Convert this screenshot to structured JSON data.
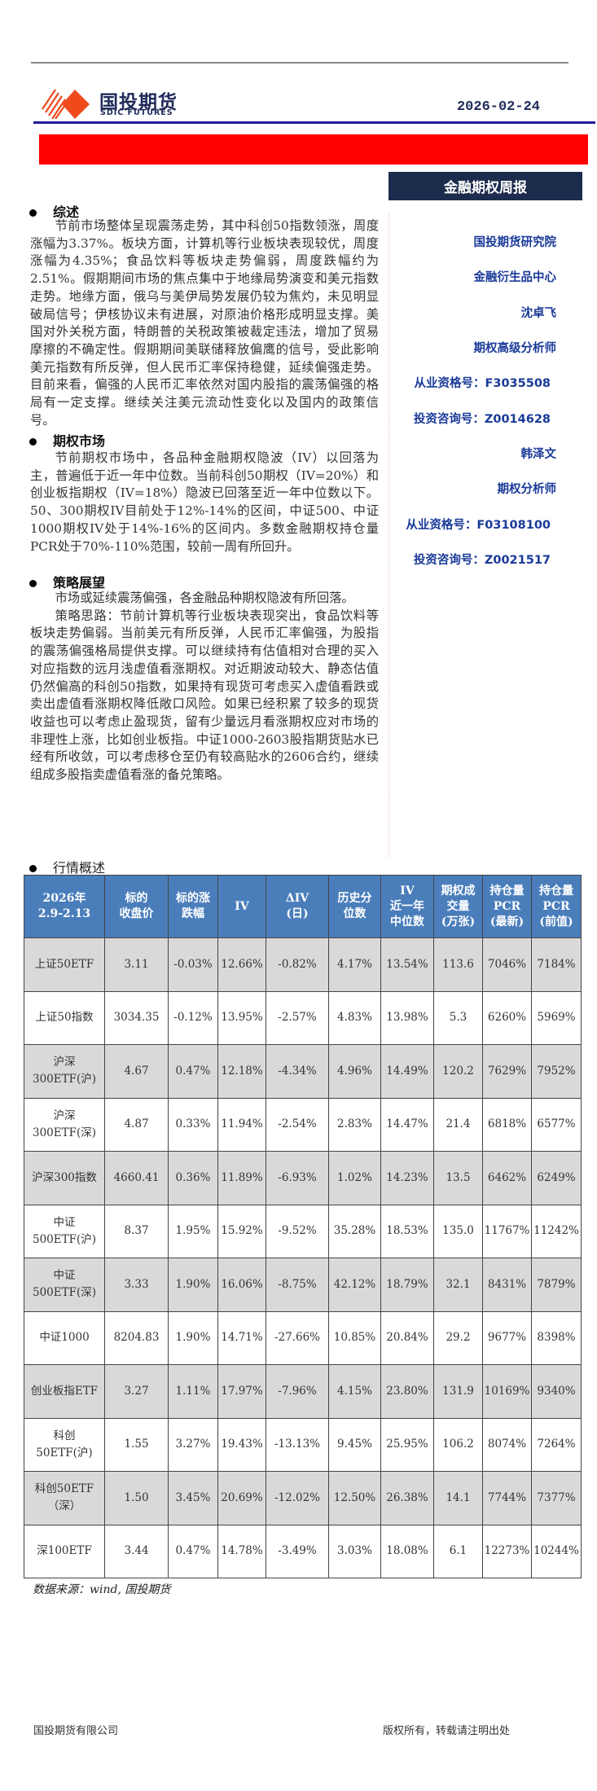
{
  "header": {
    "logo_cn": "国投期货",
    "logo_en": "SDIC FUTURES",
    "date": "2026-02-24",
    "report_type": "金融期权周报",
    "brand_red": "#ff0000",
    "brand_navy": "#1c2c4c"
  },
  "sections": [
    {
      "title": "综述",
      "paragraphs": [
        "节前市场整体呈现震荡走势，其中科创50指数领涨，周度涨幅为3.37%。板块方面，计算机等行业板块表现较优，周度涨幅为4.35%；食品饮料等板块走势偏弱，周度跌幅约为2.51%。假期期间市场的焦点集中于地缘局势演变和美元指数走势。地缘方面，俄乌与美伊局势发展仍较为焦灼，未见明显破局信号；伊核协议未有进展，对原油价格形成明显支撑。美国对外关税方面，特朗普的关税政策被裁定违法，增加了贸易摩擦的不确定性。假期期间美联储释放偏鹰的信号，受此影响美元指数有所反弹，但人民币汇率保持稳健，延续偏强走势。目前来看，偏强的人民币汇率依然对国内股指的震荡偏强的格局有一定支撑。继续关注美元流动性变化以及国内的政策信号。"
      ]
    },
    {
      "title": "期权市场",
      "paragraphs": [
        "节前期权市场中，各品种金融期权隐波（IV）以回落为主，普遍低于近一年中位数。当前科创50期权（IV=20%）和创业板指期权（IV=18%）隐波已回落至近一年中位数以下。 50、300期权IV目前处于12%-14%的区间，中证500、中证1000期权IV处于14%-16%的区间内。多数金融期权持仓量PCR处于70%-110%范围，较前一周有所回升。"
      ]
    },
    {
      "title": "策略展望",
      "paragraphs": [
        "市场或延续震荡偏强，各金融品种期权隐波有所回落。",
        "策略思路：节前计算机等行业板块表现突出，食品饮料等板块走势偏弱。当前美元有所反弹，人民币汇率偏强，为股指的震荡偏强格局提供支撑。可以继续持有估值相对合理的买入对应指数的远月浅虚值看涨期权。对近期波动较大、静态估值仍然偏高的科创50指数，如果持有现货可考虑买入虚值看跌或卖出虚值看涨期权降低敞口风险。如果已经积累了较多的现货收益也可以考虑止盈现货，留有少量远月看涨期权应对市场的非理性上涨，比如创业板指。中证1000-2603股指期货贴水已经有所收敛，可以考虑移仓至仍有较高贴水的2606合约，继续组成多股指卖虚值看涨的备兑策略。"
      ]
    }
  ],
  "sidebar": {
    "items": [
      {
        "text": "国投期货研究院"
      },
      {
        "text": "金融衍生品中心"
      },
      {
        "text": "沈卓飞"
      },
      {
        "text": "期权高级分析师"
      },
      {
        "text": "从业资格号：F3035508"
      },
      {
        "text": "投资咨询号：Z0014628"
      },
      {
        "text": "韩泽文"
      },
      {
        "text": "期权分析师"
      },
      {
        "text": "从业资格号：F03108100"
      },
      {
        "text": "投资咨询号：Z0021517"
      }
    ],
    "color": "#1a3a99"
  },
  "market": {
    "title": "行情概述",
    "header_color": "#4a7ebb",
    "columns": [
      "2026年\n2.9-2.13",
      "标的\n收盘价",
      "标的涨\n跌幅",
      "IV",
      "ΔIV\n(日)",
      "历史分\n位数",
      "IV\n近一年\n中位数",
      "期权成\n交量\n(万张)",
      "持仓量\nPCR\n(最新)",
      "持仓量\nPCR\n(前值)"
    ],
    "rows": [
      [
        "上证50ETF",
        "3.11",
        "-0.03%",
        "12.66%",
        "-0.82%",
        "4.17%",
        "13.54%",
        "113.6",
        "7046%",
        "7184%"
      ],
      [
        "上证50指数",
        "3034.35",
        "-0.12%",
        "13.95%",
        "-2.57%",
        "4.83%",
        "13.98%",
        "5.3",
        "6260%",
        "5969%"
      ],
      [
        "沪深\n300ETF(沪)",
        "4.67",
        "0.47%",
        "12.18%",
        "-4.34%",
        "4.96%",
        "14.49%",
        "120.2",
        "7629%",
        "7952%"
      ],
      [
        "沪深\n300ETF(深)",
        "4.87",
        "0.33%",
        "11.94%",
        "-2.54%",
        "2.83%",
        "14.47%",
        "21.4",
        "6818%",
        "6577%"
      ],
      [
        "沪深300指数",
        "4660.41",
        "0.36%",
        "11.89%",
        "-6.93%",
        "1.02%",
        "14.23%",
        "13.5",
        "6462%",
        "6249%"
      ],
      [
        "中证\n500ETF(沪)",
        "8.37",
        "1.95%",
        "15.92%",
        "-9.52%",
        "35.28%",
        "18.53%",
        "135.0",
        "11767%",
        "11242%"
      ],
      [
        "中证\n500ETF(深)",
        "3.33",
        "1.90%",
        "16.06%",
        "-8.75%",
        "42.12%",
        "18.79%",
        "32.1",
        "8431%",
        "7879%"
      ],
      [
        "中证1000",
        "8204.83",
        "1.90%",
        "14.71%",
        "-27.66%",
        "10.85%",
        "20.84%",
        "29.2",
        "9677%",
        "8398%"
      ],
      [
        "创业板指ETF",
        "3.27",
        "1.11%",
        "17.97%",
        "-7.96%",
        "4.15%",
        "23.80%",
        "131.9",
        "10169%",
        "9340%"
      ],
      [
        "科创\n50ETF(沪)",
        "1.55",
        "3.27%",
        "19.43%",
        "-13.13%",
        "9.45%",
        "25.95%",
        "106.2",
        "8074%",
        "7264%"
      ],
      [
        "科创50ETF\n（深）",
        "1.50",
        "3.45%",
        "20.69%",
        "-12.02%",
        "12.50%",
        "26.38%",
        "14.1",
        "7744%",
        "7377%"
      ],
      [
        "深100ETF",
        "3.44",
        "0.47%",
        "14.78%",
        "-3.49%",
        "3.03%",
        "18.08%",
        "6.1",
        "12273%",
        "10244%"
      ]
    ],
    "source": "数据来源：wind, 国投期货"
  },
  "footer": {
    "left": "国投期货有限公司",
    "right": "版权所有，转载请注明出处"
  }
}
